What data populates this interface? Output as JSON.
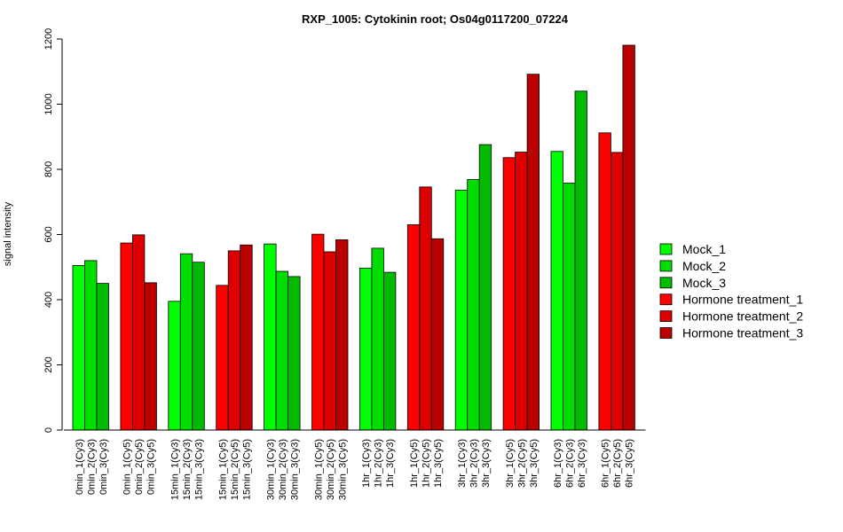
{
  "chart_data": {
    "type": "bar",
    "title": "RXP_1005: Cytokinin root; Os04g0117200_07224",
    "xlabel": "",
    "ylabel": "signal intensity",
    "ylim": [
      0,
      1200
    ],
    "yticks": [
      0,
      200,
      400,
      600,
      800,
      1000,
      1200
    ],
    "grid": false,
    "legend_position": "right",
    "series": [
      {
        "name": "Mock_1",
        "color": "#00FF00"
      },
      {
        "name": "Mock_2",
        "color": "#00DD00"
      },
      {
        "name": "Mock_3",
        "color": "#00BB00"
      },
      {
        "name": "Hormone treatment_1",
        "color": "#FF0000"
      },
      {
        "name": "Hormone treatment_2",
        "color": "#DD0000"
      },
      {
        "name": "Hormone treatment_3",
        "color": "#BB0000"
      }
    ],
    "groups": [
      {
        "series_offset": 0,
        "labels": [
          "0min_1(Cy3)",
          "0min_2(Cy3)",
          "0min_3(Cy3)"
        ],
        "values": [
          505,
          520,
          450
        ]
      },
      {
        "series_offset": 3,
        "labels": [
          "0min_1(Cy5)",
          "0min_2(Cy5)",
          "0min_3(Cy5)"
        ],
        "values": [
          574,
          599,
          452
        ]
      },
      {
        "series_offset": 0,
        "labels": [
          "15min_1(Cy3)",
          "15min_2(Cy3)",
          "15min_3(Cy3)"
        ],
        "values": [
          395,
          541,
          515
        ]
      },
      {
        "series_offset": 3,
        "labels": [
          "15min_1(Cy5)",
          "15min_2(Cy5)",
          "15min_3(Cy5)"
        ],
        "values": [
          444,
          550,
          568
        ]
      },
      {
        "series_offset": 0,
        "labels": [
          "30min_1(Cy3)",
          "30min_2(Cy3)",
          "30min_3(Cy3)"
        ],
        "values": [
          571,
          487,
          471
        ]
      },
      {
        "series_offset": 3,
        "labels": [
          "30min_1(Cy5)",
          "30min_2(Cy5)",
          "30min_3(Cy5)"
        ],
        "values": [
          601,
          547,
          584
        ]
      },
      {
        "series_offset": 0,
        "labels": [
          "1hr_1(Cy3)",
          "1hr_2(Cy3)",
          "1hr_3(Cy3)"
        ],
        "values": [
          497,
          558,
          484
        ]
      },
      {
        "series_offset": 3,
        "labels": [
          "1hr_1(Cy5)",
          "1hr_2(Cy5)",
          "1hr_3(Cy5)"
        ],
        "values": [
          630,
          746,
          587
        ]
      },
      {
        "series_offset": 0,
        "labels": [
          "3hr_1(Cy3)",
          "3hr_2(Cy3)",
          "3hr_3(Cy3)"
        ],
        "values": [
          736,
          769,
          876
        ]
      },
      {
        "series_offset": 3,
        "labels": [
          "3hr_1(Cy5)",
          "3hr_2(Cy5)",
          "3hr_3(Cy5)"
        ],
        "values": [
          836,
          853,
          1092
        ]
      },
      {
        "series_offset": 0,
        "labels": [
          "6hr_1(Cy3)",
          "6hr_2(Cy3)",
          "6hr_3(Cy3)"
        ],
        "values": [
          855,
          758,
          1040
        ]
      },
      {
        "series_offset": 3,
        "labels": [
          "6hr_1(Cy5)",
          "6hr_2(Cy5)",
          "6hr_3(Cy5)"
        ],
        "values": [
          912,
          852,
          1181
        ]
      }
    ]
  }
}
